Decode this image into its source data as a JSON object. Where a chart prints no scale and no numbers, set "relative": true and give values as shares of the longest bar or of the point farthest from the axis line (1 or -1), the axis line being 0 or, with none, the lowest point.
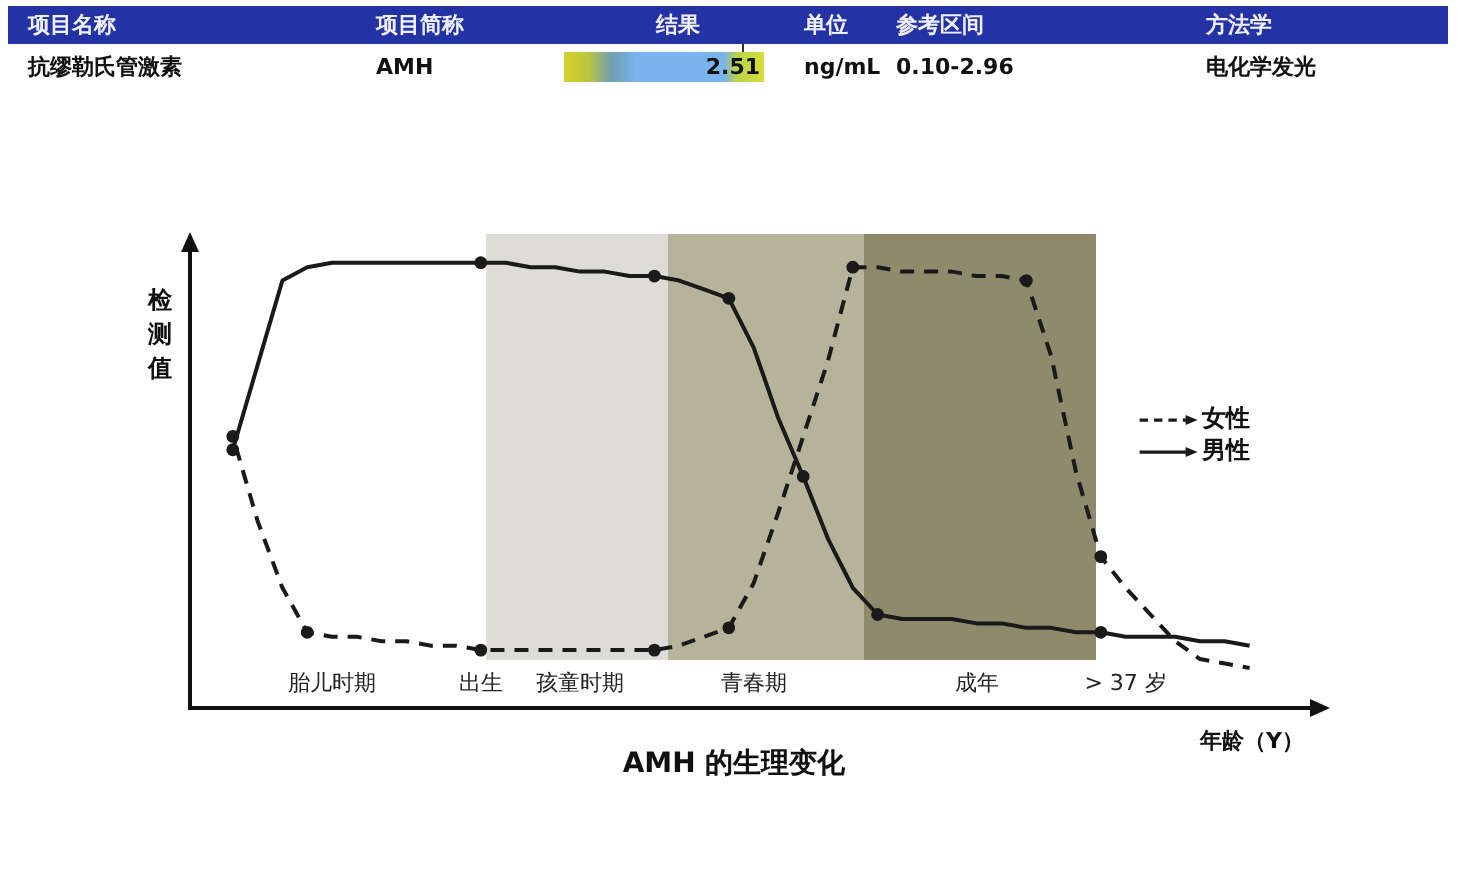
{
  "chart_data": [
    {
      "type": "other",
      "categories": [
        "项目名称",
        "项目简称",
        "结果",
        "单位",
        "参考区间",
        "方法学"
      ],
      "annotations": [
        "抗缪勒氏管激素",
        "AMH",
        "2.51",
        "ng/mL",
        "0.10-2.96",
        "电化学发光"
      ]
    },
    {
      "type": "line",
      "title": "AMH 的生理变化",
      "xlabel": "年龄（Y）",
      "ylabel": "检测值",
      "relative": true,
      "tick_labels": "x",
      "marker": "circle",
      "legend": "right",
      "categories": [
        null,
        null,
        null,
        null,
        "胎儿时期",
        null,
        null,
        null,
        null,
        null,
        "出生",
        null,
        null,
        null,
        "孩童时期",
        null,
        null,
        null,
        null,
        null,
        null,
        "青春期",
        null,
        null,
        null,
        null,
        null,
        null,
        null,
        null,
        "成年",
        null,
        null,
        null,
        null,
        null,
        "> 37 岁",
        null,
        null,
        null,
        null,
        null
      ],
      "series": [
        {
          "name": "女性",
          "color": "#1a1a1a",
          "line_style": "dashed",
          "marker": "none",
          "values": [
            0.61,
            0.42,
            0.27,
            0.17,
            0.16,
            0.16,
            0.15,
            0.15,
            0.14,
            0.14,
            0.13,
            0.13,
            0.13,
            0.13,
            0.13,
            0.13,
            0.13,
            0.13,
            0.14,
            0.16,
            0.18,
            0.28,
            0.44,
            0.61,
            0.78,
            0.99,
            0.99,
            0.98,
            0.98,
            0.98,
            0.97,
            0.97,
            0.96,
            0.79,
            0.53,
            0.34,
            0.27,
            0.21,
            0.15,
            0.11,
            0.1,
            0.09
          ]
        },
        {
          "name": "男性",
          "color": "#1a1a1a",
          "line_style": "solid",
          "marker": "none",
          "values": [
            0.58,
            0.77,
            0.96,
            0.99,
            1,
            1,
            1,
            1,
            1,
            1,
            1,
            1,
            0.99,
            0.99,
            0.98,
            0.98,
            0.97,
            0.97,
            0.96,
            0.94,
            0.92,
            0.81,
            0.65,
            0.52,
            0.38,
            0.27,
            0.21,
            0.2,
            0.2,
            0.2,
            0.19,
            0.19,
            0.18,
            0.18,
            0.17,
            0.17,
            0.16,
            0.16,
            0.16,
            0.15,
            0.15,
            0.14
          ]
        },
        {
          "type": "scatter",
          "color": "#1a1a1a",
          "values": [
            0.61,
            null,
            null,
            0.17,
            null,
            null,
            null,
            null,
            null,
            null,
            0.13,
            null,
            null,
            null,
            null,
            null,
            null,
            0.13,
            null,
            null,
            0.18,
            null,
            null,
            null,
            null,
            0.99,
            null,
            null,
            null,
            null,
            null,
            null,
            0.96,
            null,
            null,
            0.34,
            null,
            null,
            null,
            null,
            null,
            null
          ]
        },
        {
          "type": "scatter",
          "color": "#1a1a1a",
          "values": [
            0.58,
            null,
            null,
            null,
            null,
            null,
            null,
            null,
            null,
            null,
            1,
            null,
            null,
            null,
            null,
            null,
            null,
            0.97,
            null,
            null,
            0.92,
            null,
            null,
            0.52,
            null,
            null,
            0.21,
            null,
            null,
            null,
            null,
            null,
            null,
            null,
            null,
            0.17,
            null,
            null,
            null,
            null,
            null,
            null
          ]
        }
      ]
    }
  ]
}
